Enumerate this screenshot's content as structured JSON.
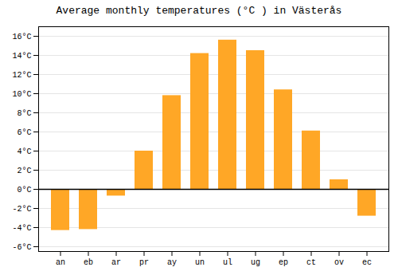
{
  "chart_data": {
    "type": "bar",
    "title": "Average monthly temperatures (°C ) in Västerås",
    "categories": [
      "an",
      "eb",
      "ar",
      "pr",
      "ay",
      "un",
      "ul",
      "ug",
      "ep",
      "ct",
      "ov",
      "ec"
    ],
    "values": [
      -4.3,
      -4.2,
      -0.7,
      4.0,
      9.8,
      14.2,
      15.6,
      14.5,
      10.4,
      6.1,
      1.0,
      -2.8
    ],
    "color": "#FFA726",
    "ylim": [
      -6.5,
      17.0
    ],
    "yticks": [
      {
        "value": -6,
        "label": "-6°C"
      },
      {
        "value": -4,
        "label": "-4°C"
      },
      {
        "value": -2,
        "label": "-2°C"
      },
      {
        "value": 0,
        "label": "0°C"
      },
      {
        "value": 2,
        "label": "2°C"
      },
      {
        "value": 4,
        "label": "4°C"
      },
      {
        "value": 6,
        "label": "6°C"
      },
      {
        "value": 8,
        "label": "8°C"
      },
      {
        "value": 10,
        "label": "10°C"
      },
      {
        "value": 12,
        "label": "12°C"
      },
      {
        "value": 14,
        "label": "14°C"
      },
      {
        "value": 16,
        "label": "16°C"
      }
    ],
    "grid": true
  }
}
